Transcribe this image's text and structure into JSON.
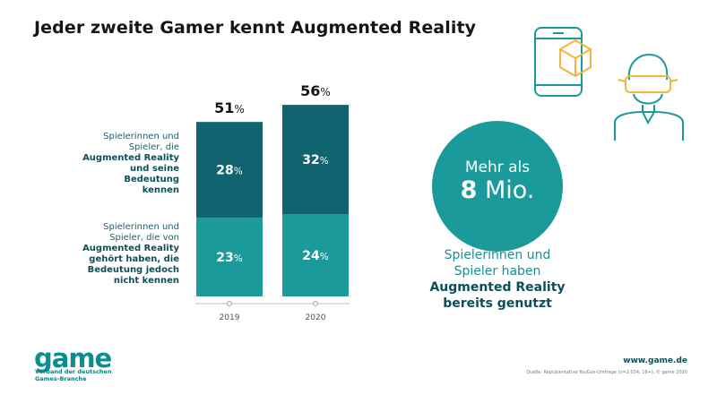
{
  "title": "Jeder zweite Gamer kennt Augmented Reality",
  "colors": {
    "dark_teal": "#0f6470",
    "light_teal": "#1a9a9b",
    "circle": "#1a9a9b",
    "accent_yellow": "#f5b43b"
  },
  "chart_data": {
    "type": "bar",
    "stacked": true,
    "categories": [
      "2019",
      "2020"
    ],
    "totals": [
      51,
      56
    ],
    "totals_display": [
      "51",
      "56"
    ],
    "unit": "%",
    "series": [
      {
        "name": "Spielerinnen und Spieler, die von Augmented Reality gehört haben, die Bedeutung jedoch nicht kennen",
        "values": [
          23,
          24
        ],
        "display": [
          "23",
          "24"
        ]
      },
      {
        "name": "Spielerinnen und Spieler, die Augmented Reality und seine Bedeutung kennen",
        "values": [
          28,
          32
        ],
        "display": [
          "28",
          "32"
        ]
      }
    ],
    "ylim": [
      0,
      60
    ]
  },
  "legend": {
    "top": {
      "line1": "Spielerinnen und",
      "line2": "Spieler, die",
      "bold1": "Augmented Reality",
      "bold2": "und seine Bedeutung",
      "bold3": "kennen"
    },
    "bottom": {
      "line1": "Spielerinnen und",
      "line2": "Spieler, die von",
      "bold1": "Augmented Reality",
      "bold2": "gehört haben, die",
      "bold3": "Bedeutung jedoch",
      "bold4": "nicht kennen"
    }
  },
  "highlight": {
    "prefix": "Mehr als",
    "number": "8",
    "unit": "Mio.",
    "text_line1": "Spielerinnen und",
    "text_line2": "Spieler haben",
    "bold_line1": "Augmented Reality",
    "bold_line2": "bereits genutzt"
  },
  "footer": {
    "logo": "game",
    "logo_sub1": "Verband der deutschen",
    "logo_sub2": "Games-Branche",
    "website": "www.game.de",
    "source": "Quelle: Repräsentative YouGov-Umfrage (n=2.034, 16+), © game 2020"
  },
  "icons": [
    "smartphone-icon",
    "cube-icon",
    "vr-person-icon"
  ]
}
